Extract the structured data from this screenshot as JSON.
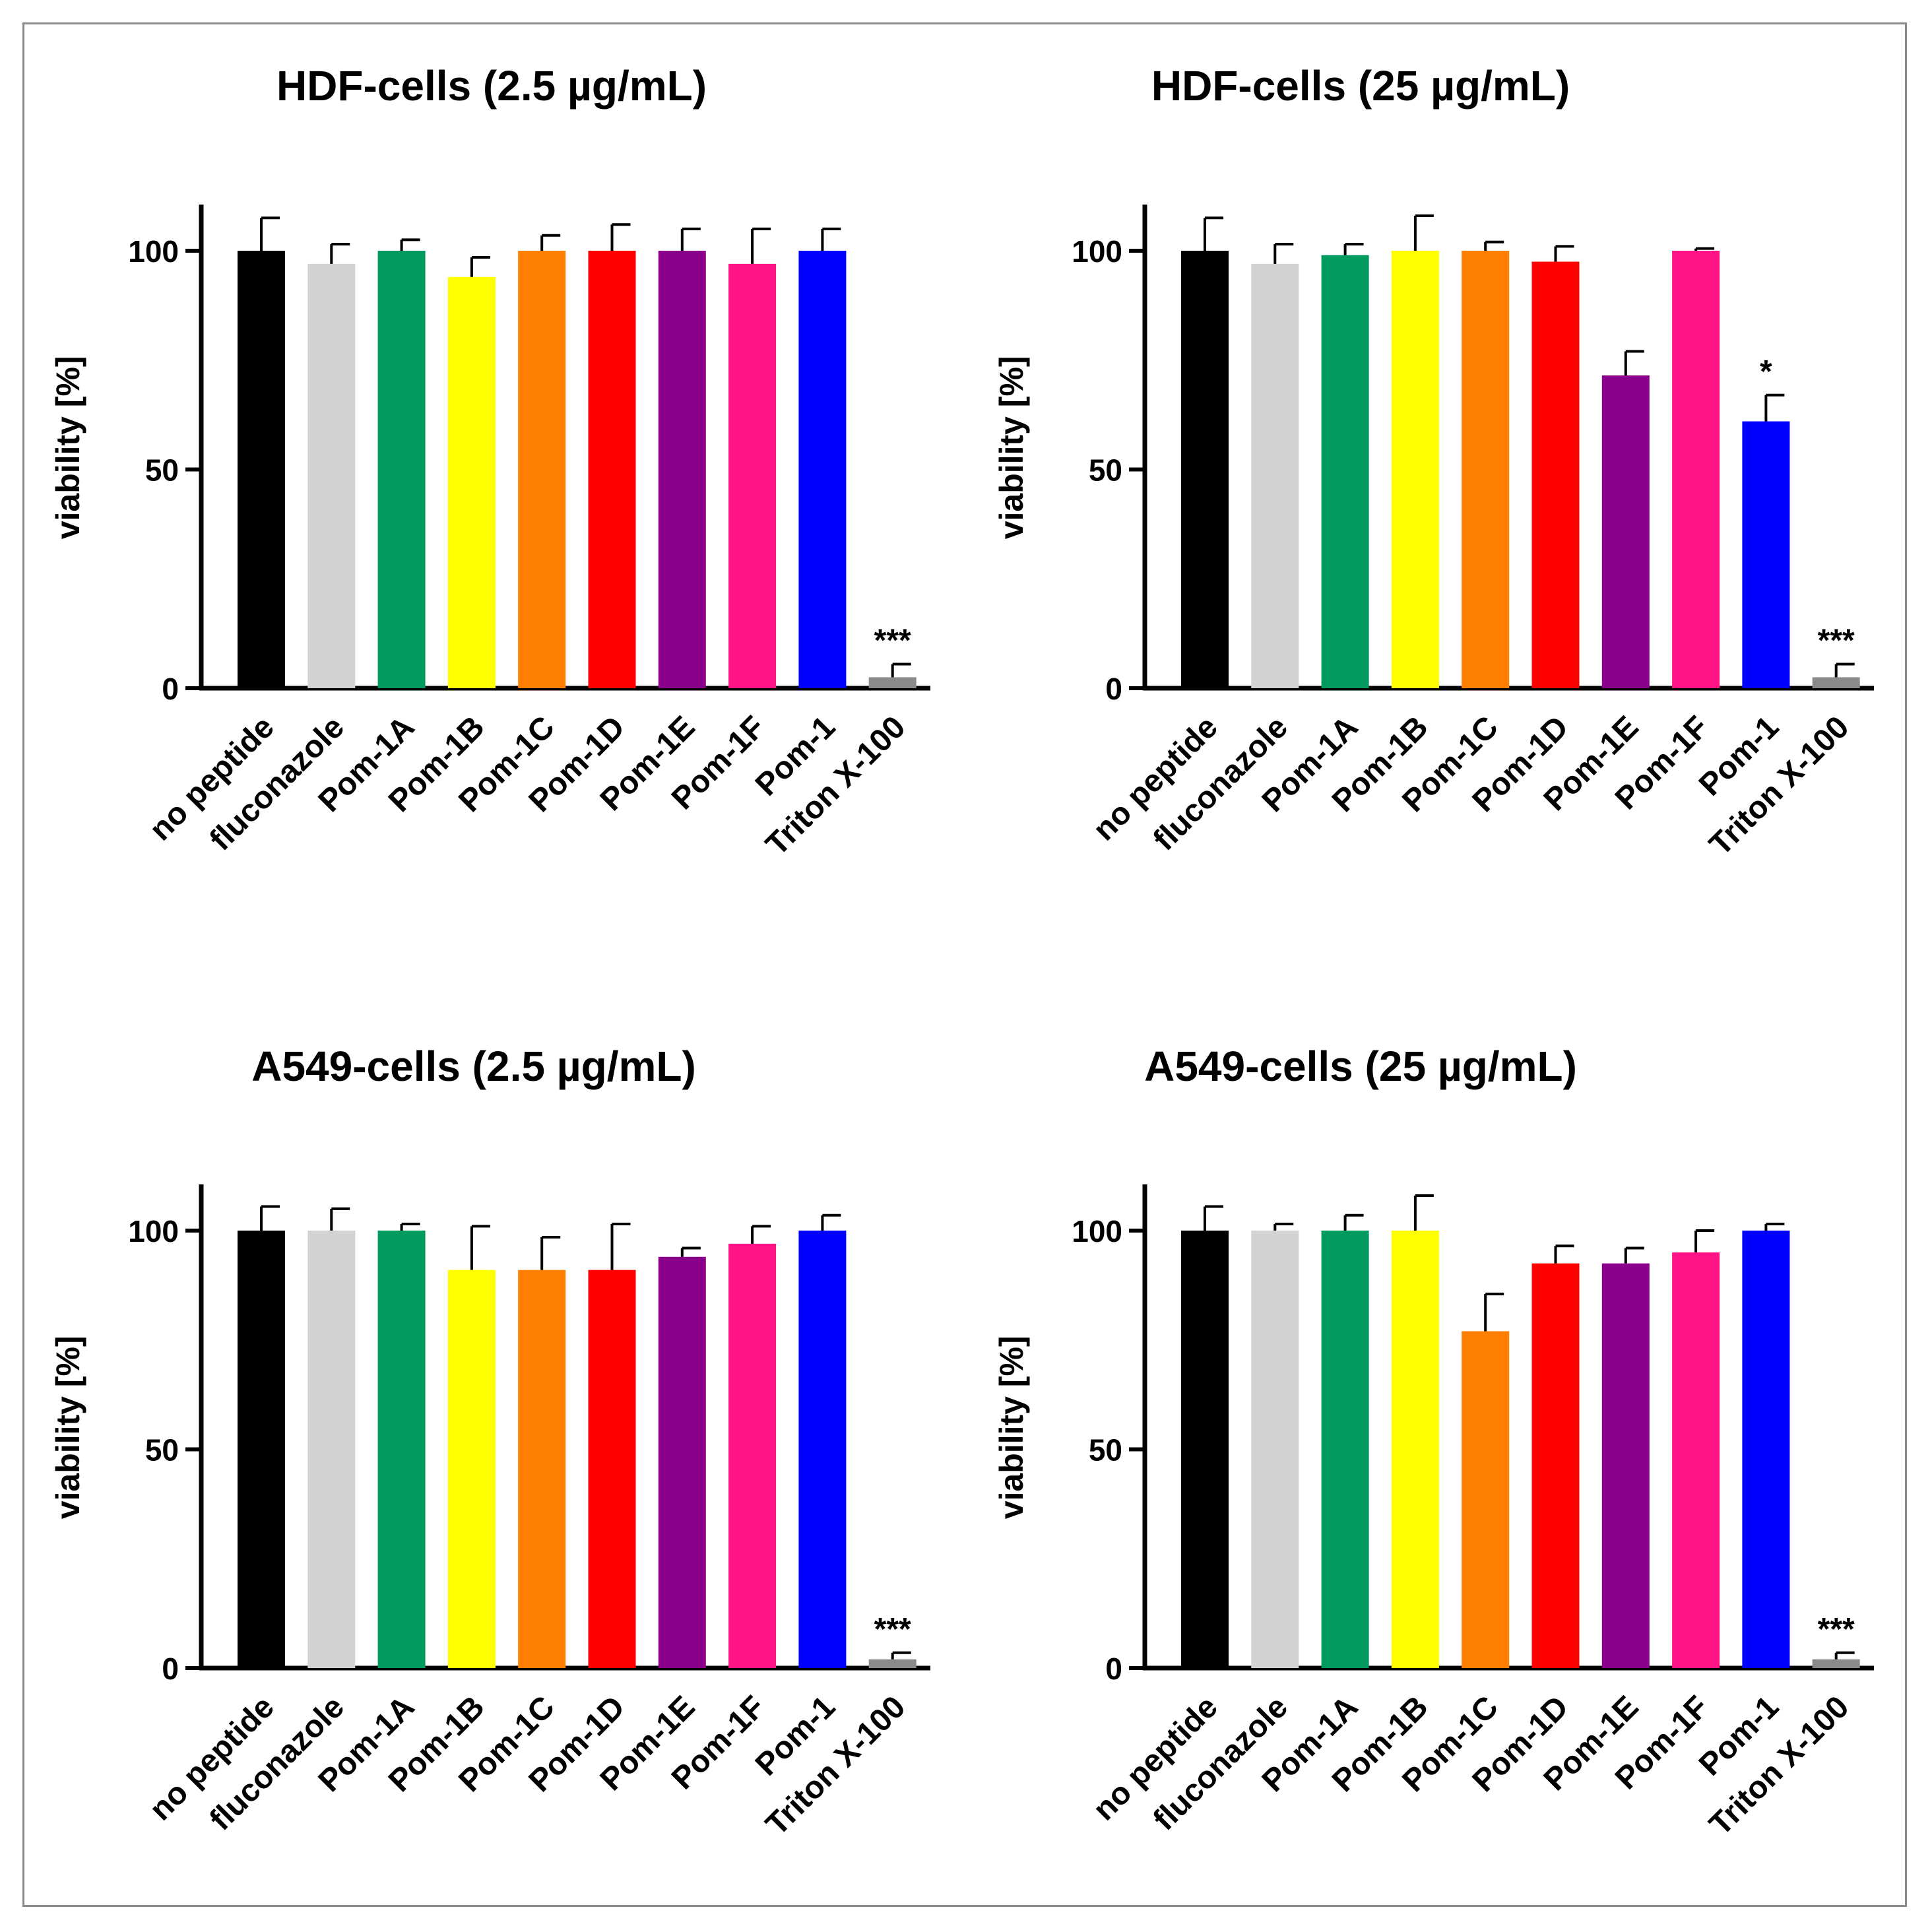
{
  "chart_data": [
    {
      "type": "bar",
      "title": "HDF-cells (2.5 µg/mL)",
      "xlabel": "",
      "ylabel": "viability [%]",
      "ylim": [
        0,
        110
      ],
      "yticks": [
        0,
        50,
        100
      ],
      "categories": [
        "no peptide",
        "fluconazole",
        "Pom-1A",
        "Pom-1B",
        "Pom-1C",
        "Pom-1D",
        "Pom-1E",
        "Pom-1F",
        "Pom-1",
        "Triton X-100"
      ],
      "values": [
        100,
        97,
        100,
        94,
        100,
        100,
        100,
        97,
        100,
        2.5
      ],
      "errors": [
        7.5,
        4.5,
        2.5,
        4.5,
        3.5,
        6,
        5,
        8,
        5,
        3
      ],
      "annotations": [
        "",
        "",
        "",
        "",
        "",
        "",
        "",
        "",
        "",
        "***"
      ],
      "colors": [
        "#000000",
        "#d3d3d3",
        "#009a5f",
        "#ffff00",
        "#ff7f00",
        "#ff0000",
        "#8b008b",
        "#ff1385",
        "#0000ff",
        "#8a8a8a"
      ]
    },
    {
      "type": "bar",
      "title": "HDF-cells (25 µg/mL)",
      "xlabel": "",
      "ylabel": "viability [%]",
      "ylim": [
        0,
        110
      ],
      "yticks": [
        0,
        50,
        100
      ],
      "categories": [
        "no peptide",
        "fluconazole",
        "Pom-1A",
        "Pom-1B",
        "Pom-1C",
        "Pom-1D",
        "Pom-1E",
        "Pom-1F",
        "Pom-1",
        "Triton X-100"
      ],
      "values": [
        100,
        97,
        99,
        100,
        100,
        97.5,
        71.5,
        100,
        61,
        2.5
      ],
      "errors": [
        7.5,
        4.5,
        2.5,
        8,
        2,
        3.5,
        5.5,
        0.5,
        6,
        3
      ],
      "annotations": [
        "",
        "",
        "",
        "",
        "",
        "",
        "",
        "",
        "*",
        "***"
      ],
      "colors": [
        "#000000",
        "#d3d3d3",
        "#009a5f",
        "#ffff00",
        "#ff7f00",
        "#ff0000",
        "#8b008b",
        "#ff1385",
        "#0000ff",
        "#8a8a8a"
      ]
    },
    {
      "type": "bar",
      "title": "A549-cells (2.5 µg/mL)",
      "xlabel": "",
      "ylabel": "viability [%]",
      "ylim": [
        0,
        110
      ],
      "yticks": [
        0,
        50,
        100
      ],
      "categories": [
        "no peptide",
        "fluconazole",
        "Pom-1A",
        "Pom-1B",
        "Pom-1C",
        "Pom-1D",
        "Pom-1E",
        "Pom-1F",
        "Pom-1",
        "Triton X-100"
      ],
      "values": [
        100,
        100,
        100,
        91,
        91,
        91,
        94,
        97,
        100,
        2
      ],
      "errors": [
        5.5,
        5,
        1.5,
        10,
        7.5,
        10.5,
        2,
        4,
        3.5,
        1.5
      ],
      "annotations": [
        "",
        "",
        "",
        "",
        "",
        "",
        "",
        "",
        "",
        "***"
      ],
      "colors": [
        "#000000",
        "#d3d3d3",
        "#009a5f",
        "#ffff00",
        "#ff7f00",
        "#ff0000",
        "#8b008b",
        "#ff1385",
        "#0000ff",
        "#8a8a8a"
      ]
    },
    {
      "type": "bar",
      "title": "A549-cells (25 µg/mL)",
      "xlabel": "",
      "ylabel": "viability [%]",
      "ylim": [
        0,
        110
      ],
      "yticks": [
        0,
        50,
        100
      ],
      "categories": [
        "no peptide",
        "fluconazole",
        "Pom-1A",
        "Pom-1B",
        "Pom-1C",
        "Pom-1D",
        "Pom-1E",
        "Pom-1F",
        "Pom-1",
        "Triton X-100"
      ],
      "values": [
        100,
        100,
        100,
        100,
        77,
        92.5,
        92.5,
        95,
        100,
        2
      ],
      "errors": [
        5.5,
        1.5,
        3.5,
        8,
        8.5,
        4,
        3.5,
        5,
        1.5,
        1.5
      ],
      "annotations": [
        "",
        "",
        "",
        "",
        "",
        "",
        "",
        "",
        "",
        "***"
      ],
      "colors": [
        "#000000",
        "#d3d3d3",
        "#009a5f",
        "#ffff00",
        "#ff7f00",
        "#ff0000",
        "#8b008b",
        "#ff1385",
        "#0000ff",
        "#8a8a8a"
      ]
    }
  ]
}
